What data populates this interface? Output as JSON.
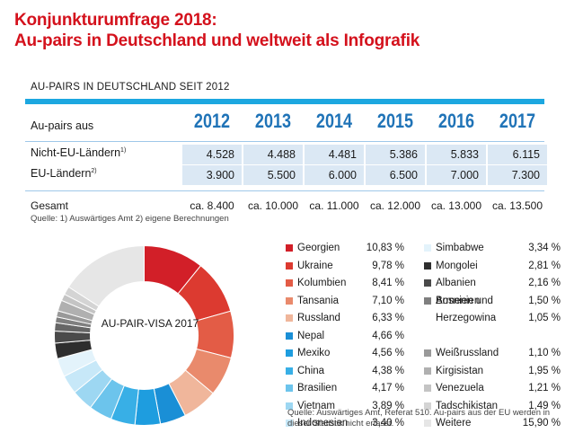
{
  "title_line1": "Konjunkturumfrage 2018:",
  "title_line2": "Au-pairs in Deutschland und weltweit als Infografik",
  "table_heading": "AU-PAIRS IN DEUTSCHLAND SEIT 2012",
  "table": {
    "header_label": "Au-pairs aus",
    "years": [
      "2012",
      "2013",
      "2014",
      "2015",
      "2016",
      "2017"
    ],
    "rows": [
      {
        "label": "Nicht-EU-Ländern",
        "note": "1)",
        "values": [
          "4.528",
          "4.488",
          "4.481",
          "5.386",
          "5.833",
          "6.115"
        ]
      },
      {
        "label": "EU-Ländern",
        "note": "2)",
        "values": [
          "3.900",
          "5.500",
          "6.000",
          "6.500",
          "7.000",
          "7.300"
        ]
      }
    ],
    "total_label": "Gesamt",
    "totals": [
      "ca. 8.400",
      "ca. 10.000",
      "ca. 11.000",
      "ca. 12.000",
      "ca. 13.000",
      "ca. 13.500"
    ],
    "source": "Quelle:  1) Auswärtiges Amt  2) eigene Berechnungen"
  },
  "chart_data": [
    {
      "type": "table",
      "title": "AU-PAIRS IN DEUTSCHLAND SEIT 2012",
      "categories": [
        "2012",
        "2013",
        "2014",
        "2015",
        "2016",
        "2017"
      ],
      "series": [
        {
          "name": "Nicht-EU-Ländern",
          "values": [
            4528,
            4488,
            4481,
            5386,
            5833,
            6115
          ]
        },
        {
          "name": "EU-Ländern",
          "values": [
            3900,
            5500,
            6000,
            6500,
            7000,
            7300
          ]
        },
        {
          "name": "Gesamt",
          "values": [
            8400,
            10000,
            11000,
            12000,
            13000,
            13500
          ]
        }
      ]
    },
    {
      "type": "pie",
      "title": "AU-PAIR-VISA 2017",
      "legend": "right",
      "slices": [
        {
          "label": "Georgien",
          "value": 10.83,
          "display": "10,83 %",
          "color": "#d21f28"
        },
        {
          "label": "Ukraine",
          "value": 9.78,
          "display": "9,78 %",
          "color": "#dc3a30"
        },
        {
          "label": "Kolumbien",
          "value": 8.41,
          "display": "8,41 %",
          "color": "#e35c46"
        },
        {
          "label": "Tansania",
          "value": 7.1,
          "display": "7,10 %",
          "color": "#e98a6c"
        },
        {
          "label": "Russland",
          "value": 6.33,
          "display": "6,33 %",
          "color": "#f0b69b"
        },
        {
          "label": "Nepal",
          "value": 4.66,
          "display": "4,66 %",
          "color": "#1a8fd6"
        },
        {
          "label": "Mexiko",
          "value": 4.56,
          "display": "4,56 %",
          "color": "#1e9ddf"
        },
        {
          "label": "China",
          "value": 4.38,
          "display": "4,38 %",
          "color": "#38afe6"
        },
        {
          "label": "Brasilien",
          "value": 4.17,
          "display": "4,17 %",
          "color": "#6cc4ec"
        },
        {
          "label": "Vietnam",
          "value": 3.89,
          "display": "3,89 %",
          "color": "#9dd7f2"
        },
        {
          "label": "Indonesien",
          "value": 3.4,
          "display": "3,40 %",
          "color": "#c7e8f8"
        },
        {
          "label": "Simbabwe",
          "value": 3.34,
          "display": "3,34 %",
          "color": "#e3f3fb"
        },
        {
          "label": "Mongolei",
          "value": 2.81,
          "display": "2,81 %",
          "color": "#2e2e2e"
        },
        {
          "label": "Albanien",
          "value": 2.16,
          "display": "2,16 %",
          "color": "#4a4a4a"
        },
        {
          "label": "Armenien",
          "value": 1.5,
          "display": "1,50 %",
          "color": "#666666"
        },
        {
          "label": "Bosnien und Herzegowina",
          "label_line1": "Bosnien und",
          "label_line2": "Herzegowina",
          "value": 1.05,
          "display": "1,05 %",
          "color": "#7f7f7f"
        },
        {
          "label": "Weißrussland",
          "value": 1.1,
          "display": "1,10 %",
          "color": "#999999"
        },
        {
          "label": "Kirgisistan",
          "value": 1.95,
          "display": "1,95 %",
          "color": "#b0b0b0"
        },
        {
          "label": "Venezuela",
          "value": 1.21,
          "display": "1,21 %",
          "color": "#c4c4c4"
        },
        {
          "label": "Tadschikistan",
          "value": 1.49,
          "display": "1,49 %",
          "color": "#d4d4d4"
        },
        {
          "label": "Weitere",
          "value": 15.9,
          "display": "15,90 %",
          "color": "#e6e6e6"
        }
      ],
      "source": "Quelle: Auswärtiges Amt, Referat 510. Au-pairs aus der EU werden in dieser Statistik nicht erfasst."
    }
  ]
}
